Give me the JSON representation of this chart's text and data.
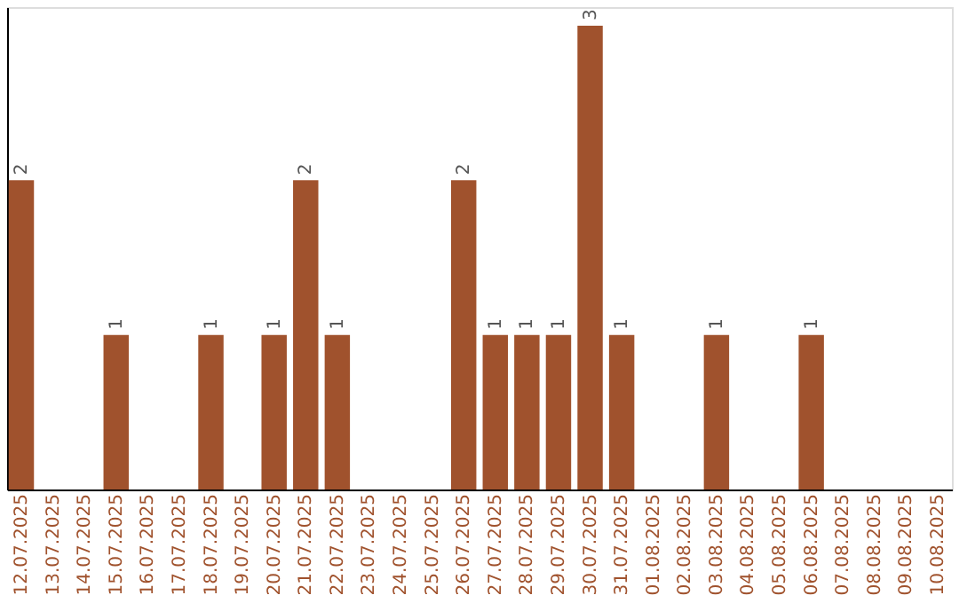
{
  "chart_data": {
    "type": "bar",
    "categories": [
      "12.07.2025",
      "13.07.2025",
      "14.07.2025",
      "15.07.2025",
      "16.07.2025",
      "17.07.2025",
      "18.07.2025",
      "19.07.2025",
      "20.07.2025",
      "21.07.2025",
      "22.07.2025",
      "23.07.2025",
      "24.07.2025",
      "25.07.2025",
      "26.07.2025",
      "27.07.2025",
      "28.07.2025",
      "29.07.2025",
      "30.07.2025",
      "31.07.2025",
      "01.08.2025",
      "02.08.2025",
      "03.08.2025",
      "04.08.2025",
      "05.08.2025",
      "06.08.2025",
      "07.08.2025",
      "08.08.2025",
      "09.08.2025",
      "10.08.2025"
    ],
    "values": [
      2,
      0,
      0,
      1,
      0,
      0,
      1,
      0,
      1,
      2,
      1,
      0,
      0,
      0,
      2,
      1,
      1,
      1,
      3,
      1,
      0,
      0,
      1,
      0,
      0,
      1,
      0,
      0,
      0,
      0
    ],
    "value_labels": [
      "2",
      null,
      null,
      "1",
      null,
      null,
      "1",
      null,
      "1",
      "2",
      "1",
      null,
      null,
      null,
      "2",
      "1",
      "1",
      "1",
      "3",
      "1",
      null,
      null,
      "1",
      null,
      null,
      "1",
      null,
      null,
      null,
      null
    ],
    "color": "#a0522d",
    "ylim": [
      0,
      3.12
    ],
    "tick_labels": "x",
    "grid": false
  }
}
